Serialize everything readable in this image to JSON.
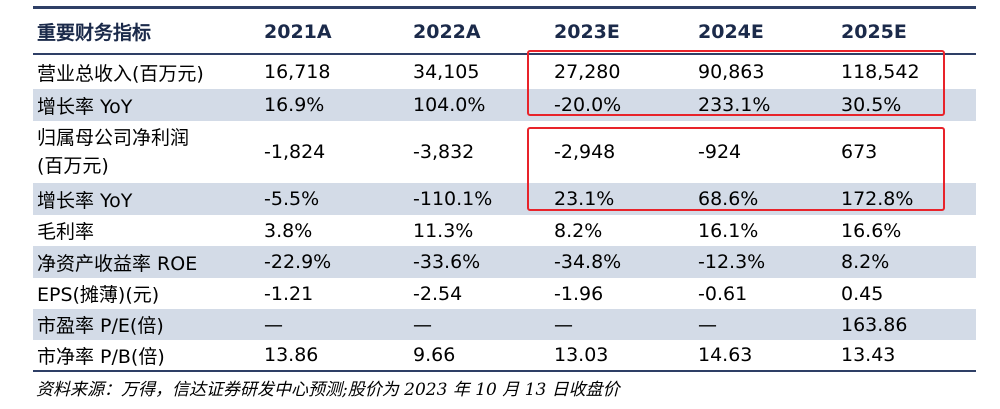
{
  "header": [
    "重要财务指标",
    "2021A",
    "2022A",
    "2023E",
    "2024E",
    "2025E"
  ],
  "rows": [
    {
      "label": "营业总收入(百万元)",
      "values": [
        "16,718",
        "34,105",
        "27,280",
        "90,863",
        "118,542"
      ]
    },
    {
      "label": "增长率 YoY",
      "values": [
        "16.9%",
        "104.0%",
        "-20.0%",
        "233.1%",
        "30.5%"
      ]
    },
    {
      "label_lines": [
        "归属母公司净利润",
        "(百万元)"
      ],
      "values": [
        "-1,824",
        "-3,832",
        "-2,948",
        "-924",
        "673"
      ]
    },
    {
      "label": "增长率 YoY",
      "values": [
        "-5.5%",
        "-110.1%",
        "23.1%",
        "68.6%",
        "172.8%"
      ]
    },
    {
      "label": "毛利率",
      "values": [
        "3.8%",
        "11.3%",
        "8.2%",
        "16.1%",
        "16.6%"
      ]
    },
    {
      "label": "净资产收益率 ROE",
      "values": [
        "-22.9%",
        "-33.6%",
        "-34.8%",
        "-12.3%",
        "8.2%"
      ]
    },
    {
      "label": "EPS(摊薄)(元)",
      "values": [
        "-1.21",
        "-2.54",
        "-1.96",
        "-0.61",
        "0.45"
      ]
    },
    {
      "label": "市盈率 P/E(倍)",
      "values": [
        "—",
        "—",
        "—",
        "—",
        "163.86"
      ]
    },
    {
      "label": "市净率 P/B(倍)",
      "values": [
        "13.86",
        "9.66",
        "13.03",
        "14.63",
        "13.43"
      ]
    }
  ],
  "source": "资料来源：万得，信达证券研发中心预测;股价为 2023 年 10 月 13 日收盘价",
  "colors": {
    "rule": "#2e3f66",
    "shade": "#d3dbe7",
    "highlight": "#e8232a"
  }
}
